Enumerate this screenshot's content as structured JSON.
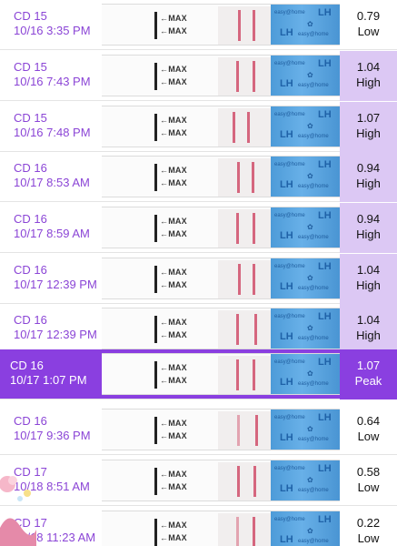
{
  "readings": [
    {
      "cd": "CD 15",
      "datetime": "10/16 3:35 PM",
      "value": "0.79",
      "level": "Low",
      "strip_max_label": "MAX",
      "strip_brand": "easy@home",
      "strip_lh": "LH"
    },
    {
      "cd": "CD 15",
      "datetime": "10/16 7:43 PM",
      "value": "1.04",
      "level": "High",
      "strip_max_label": "MAX",
      "strip_brand": "easy@home",
      "strip_lh": "LH"
    },
    {
      "cd": "CD 15",
      "datetime": "10/16 7:48 PM",
      "value": "1.07",
      "level": "High",
      "strip_max_label": "MAX",
      "strip_brand": "easy@home",
      "strip_lh": "LH"
    },
    {
      "cd": "CD 16",
      "datetime": "10/17 8:53 AM",
      "value": "0.94",
      "level": "High",
      "strip_max_label": "MAX",
      "strip_brand": "easy@home",
      "strip_lh": "LH"
    },
    {
      "cd": "CD 16",
      "datetime": "10/17 8:59 AM",
      "value": "0.94",
      "level": "High",
      "strip_max_label": "MAX",
      "strip_brand": "easy@home",
      "strip_lh": "LH"
    },
    {
      "cd": "CD 16",
      "datetime": "10/17 12:39 PM",
      "value": "1.04",
      "level": "High",
      "strip_max_label": "MAX",
      "strip_brand": "easy@home",
      "strip_lh": "LH"
    },
    {
      "cd": "CD 16",
      "datetime": "10/17 12:39 PM",
      "value": "1.04",
      "level": "High",
      "strip_max_label": "MAX",
      "strip_brand": "easy@home",
      "strip_lh": "LH"
    },
    {
      "cd": "CD 16",
      "datetime": "10/17 1:07 PM",
      "value": "1.07",
      "level": "Peak",
      "strip_max_label": "MAX",
      "strip_brand": "easy@home",
      "strip_lh": "LH"
    },
    {
      "cd": "CD 16",
      "datetime": "10/17 9:36 PM",
      "value": "0.64",
      "level": "Low",
      "strip_max_label": "MAX",
      "strip_brand": "easy@home",
      "strip_lh": "LH"
    },
    {
      "cd": "CD 17",
      "datetime": "10/18 8:51 AM",
      "value": "0.58",
      "level": "Low",
      "strip_max_label": "MAX",
      "strip_brand": "easy@home",
      "strip_lh": "LH"
    },
    {
      "cd": "CD 17",
      "datetime": "10/18 11:23 AM",
      "value": "0.22",
      "level": "Low",
      "strip_max_label": "MAX",
      "strip_brand": "easy@home",
      "strip_lh": "LH"
    }
  ],
  "colors": {
    "accent_purple": "#8a3fe0",
    "label_purple": "#8b45d6",
    "high_bg": "#dcc8f4",
    "test_line": "#d5667e",
    "strip_blue": "#4d9bd8"
  },
  "icons": {
    "arrow": "arrow-left-icon",
    "flower": "flower-icon",
    "decoration": "cartoon-decoration-icon"
  }
}
